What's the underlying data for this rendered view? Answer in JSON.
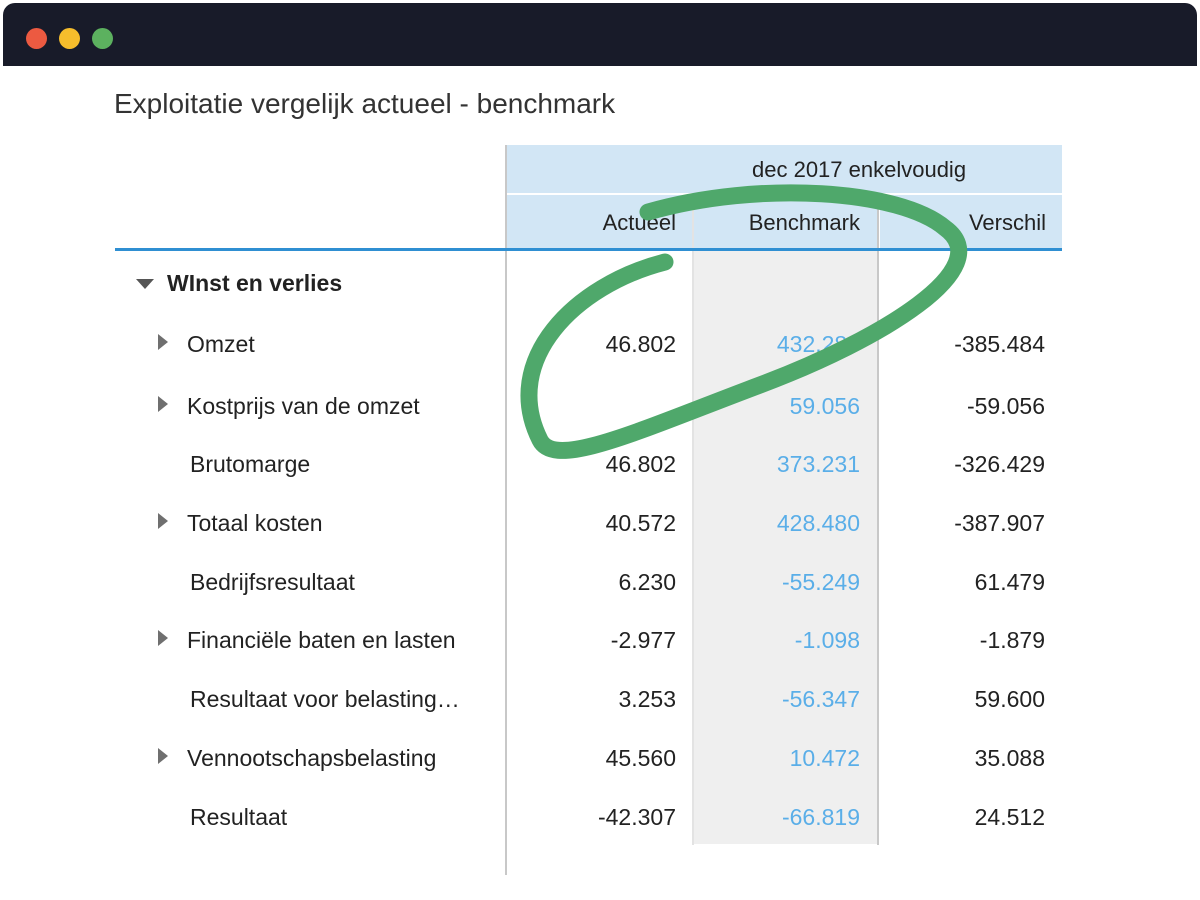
{
  "window": {
    "controls": [
      "close",
      "minimize",
      "maximize"
    ]
  },
  "report": {
    "title": "Exploitatie vergelijk actueel - benchmark"
  },
  "table": {
    "period_header": "dec 2017 enkelvoudig",
    "columns": {
      "actual": "Actueel",
      "benchmark": "Benchmark",
      "difference": "Verschil"
    },
    "group": {
      "label": "WInst en verlies",
      "expanded": true
    },
    "rows": [
      {
        "label": "Omzet",
        "expandable": true,
        "actual": "46.802",
        "benchmark": "432.286",
        "difference": "-385.484"
      },
      {
        "label": "Kostprijs van de omzet",
        "expandable": true,
        "actual": "",
        "benchmark": "59.056",
        "difference": "-59.056"
      },
      {
        "label": "Brutomarge",
        "expandable": false,
        "actual": "46.802",
        "benchmark": "373.231",
        "difference": "-326.429"
      },
      {
        "label": "Totaal kosten",
        "expandable": true,
        "actual": "40.572",
        "benchmark": "428.480",
        "difference": "-387.907"
      },
      {
        "label": "Bedrijfsresultaat",
        "expandable": false,
        "actual": "6.230",
        "benchmark": "-55.249",
        "difference": "61.479"
      },
      {
        "label": "Financiële baten en lasten",
        "expandable": true,
        "actual": "-2.977",
        "benchmark": "-1.098",
        "difference": "-1.879"
      },
      {
        "label": "Resultaat voor belasting…",
        "expandable": false,
        "actual": "3.253",
        "benchmark": "-56.347",
        "difference": "59.600"
      },
      {
        "label": "Vennootschapsbelasting",
        "expandable": true,
        "actual": "45.560",
        "benchmark": "10.472",
        "difference": "35.088"
      },
      {
        "label": "Resultaat",
        "expandable": false,
        "actual": "-42.307",
        "benchmark": "-66.819",
        "difference": "24.512"
      }
    ]
  },
  "colors": {
    "titlebar": "#181b29",
    "header_bg": "#d2e6f5",
    "accent_line": "#2f8fd2",
    "benchmark_text": "#5aaee8",
    "highlight_stroke": "#4fa86b"
  }
}
